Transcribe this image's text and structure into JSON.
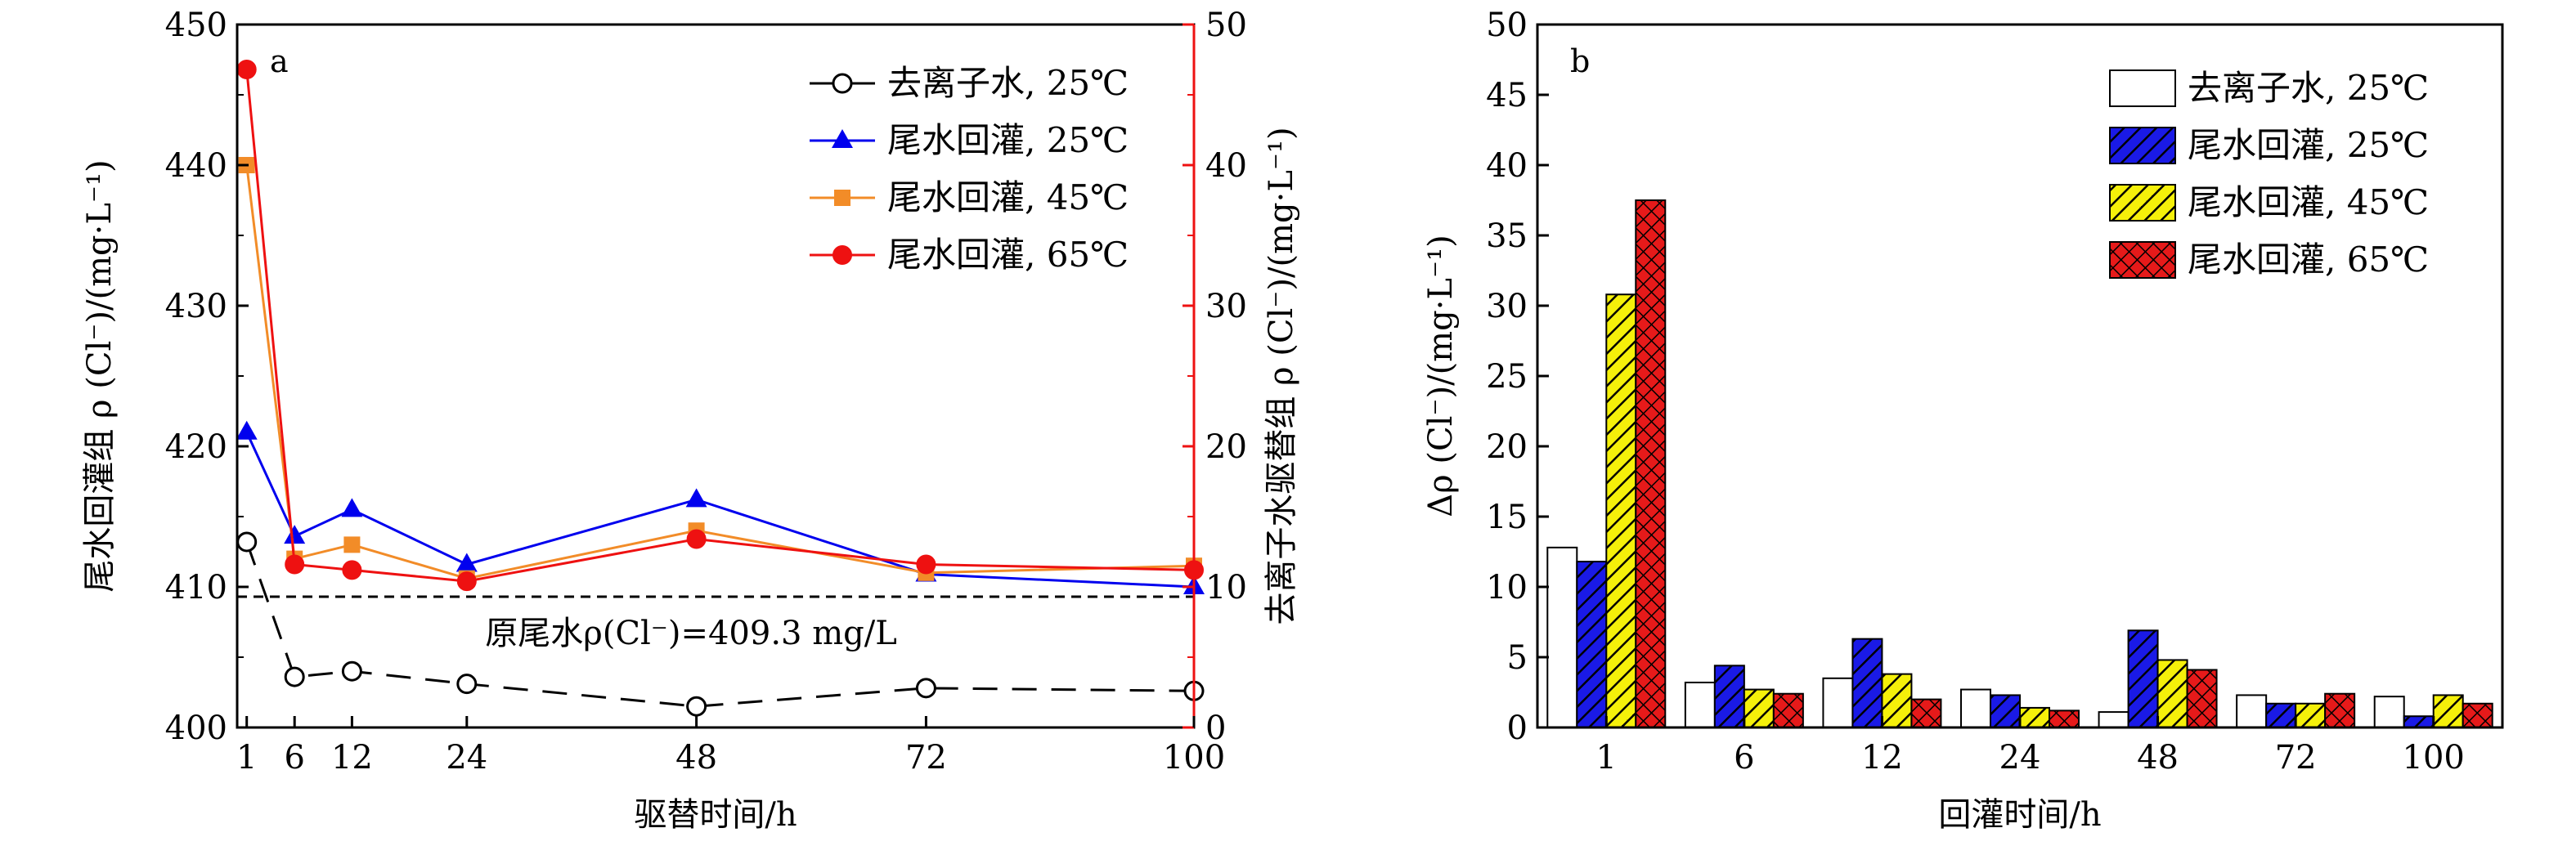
{
  "chart_data": [
    {
      "type": "line",
      "panel_label": "a",
      "x": [
        1,
        6,
        12,
        24,
        48,
        72,
        100
      ],
      "xlim": [
        0,
        100
      ],
      "xlabel": "驱替时间/h",
      "ylabel_left": "尾水回灌组 ρ (Cl⁻)/(mg·L⁻¹)",
      "ylim_left": [
        400,
        450
      ],
      "yticks_left": [
        400,
        410,
        420,
        430,
        440,
        450
      ],
      "ylabel_right": "去离子水驱替组 ρ (Cl⁻)/(mg·L⁻¹)",
      "ylim_right": [
        0,
        50
      ],
      "yticks_right": [
        0,
        10,
        20,
        30,
        40,
        50
      ],
      "reference_line": {
        "value": 409.3,
        "label": "原尾水ρ(Cl⁻)=409.3 mg/L"
      },
      "legend_position": "top-right",
      "series": [
        {
          "name": "去离子水, 25℃",
          "axis": "right",
          "marker": "circle-open",
          "line": "dashed",
          "color": "#000000",
          "values": [
            13.2,
            3.6,
            4.0,
            3.1,
            1.5,
            2.8,
            2.6
          ]
        },
        {
          "name": "尾水回灌, 25℃",
          "axis": "left",
          "marker": "triangle",
          "line": "solid",
          "color": "#0000ee",
          "values": [
            421.0,
            413.6,
            415.5,
            411.6,
            416.2,
            410.9,
            410.0
          ]
        },
        {
          "name": "尾水回灌, 45℃",
          "axis": "left",
          "marker": "square",
          "line": "solid",
          "color": "#f28c28",
          "values": [
            440.0,
            412.0,
            413.0,
            410.6,
            414.0,
            411.0,
            411.5
          ]
        },
        {
          "name": "尾水回灌, 65℃",
          "axis": "left",
          "marker": "circle",
          "line": "solid",
          "color": "#ee1111",
          "values": [
            446.8,
            411.6,
            411.2,
            410.4,
            413.4,
            411.6,
            411.2
          ]
        }
      ]
    },
    {
      "type": "bar",
      "panel_label": "b",
      "categories": [
        "1",
        "6",
        "12",
        "24",
        "48",
        "72",
        "100"
      ],
      "xlabel": "回灌时间/h",
      "ylabel": "Δρ (Cl⁻)/(mg·L⁻¹)",
      "ylim": [
        0,
        50
      ],
      "yticks": [
        0,
        5,
        10,
        15,
        20,
        25,
        30,
        35,
        40,
        45,
        50
      ],
      "legend_position": "top-right",
      "series": [
        {
          "name": "去离子水, 25℃",
          "color": "#ffffff",
          "pattern": "none",
          "values": [
            12.8,
            3.2,
            3.5,
            2.7,
            1.1,
            2.3,
            2.2
          ]
        },
        {
          "name": "尾水回灌, 25℃",
          "color": "#1a1ae6",
          "pattern": "diagonal",
          "values": [
            11.8,
            4.4,
            6.3,
            2.3,
            6.9,
            1.7,
            0.8
          ]
        },
        {
          "name": "尾水回灌, 45℃",
          "color": "#f5f00a",
          "pattern": "diagonal",
          "values": [
            30.8,
            2.7,
            3.8,
            1.4,
            4.8,
            1.7,
            2.3
          ]
        },
        {
          "name": "尾水回灌, 65℃",
          "color": "#e61a1a",
          "pattern": "crosshatch",
          "values": [
            37.5,
            2.4,
            2.0,
            1.2,
            4.1,
            2.4,
            1.7
          ]
        }
      ]
    }
  ]
}
